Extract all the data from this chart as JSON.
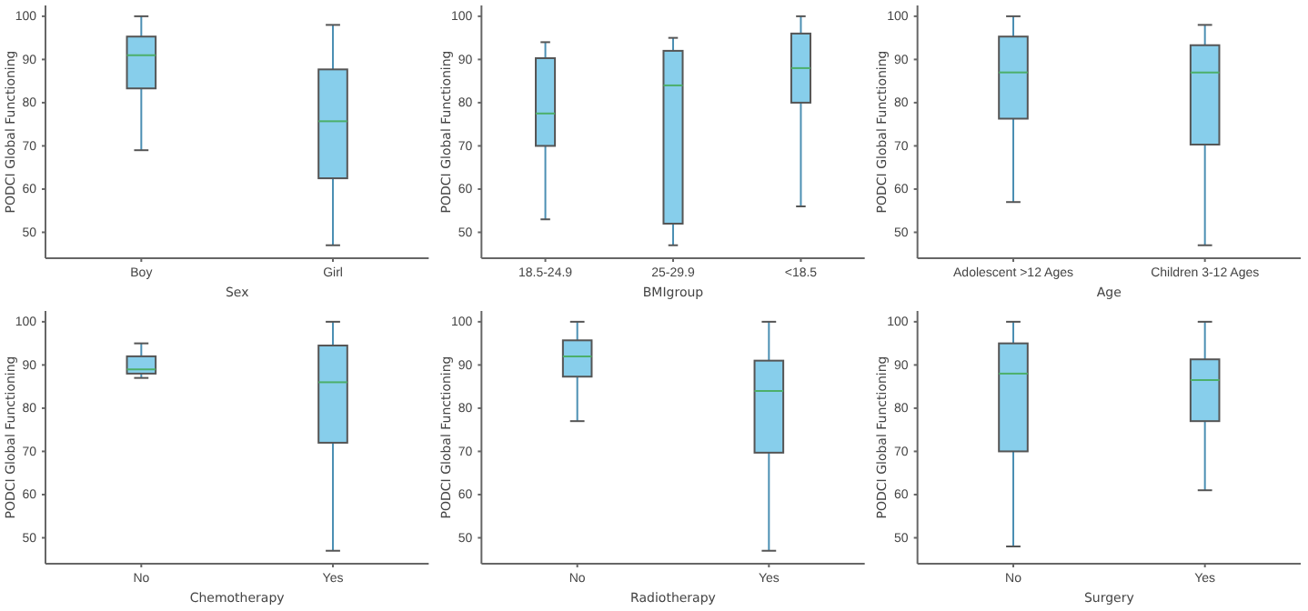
{
  "chart_data": [
    {
      "type": "box",
      "categories": [
        "Boy",
        "Girl"
      ],
      "xlabel": "Sex",
      "ylabel": "PODCI Global Functioning",
      "ylim": [
        44,
        102.5
      ],
      "yticks": [
        50,
        60,
        70,
        80,
        90,
        100
      ],
      "grid": false,
      "series": [
        {
          "color": "#87ceeb",
          "boxes": [
            {
              "low": 69,
              "q1": 83.3,
              "median": 91,
              "q3": 95.3,
              "high": 100
            },
            {
              "low": 47,
              "q1": 62.5,
              "median": 75.7,
              "q3": 87.7,
              "high": 98
            }
          ]
        }
      ]
    },
    {
      "type": "box",
      "categories": [
        "18.5-24.9",
        "25-29.9",
        "<18.5"
      ],
      "xlabel": "BMIgroup",
      "ylabel": "PODCI Global Functioning",
      "ylim": [
        44,
        102.5
      ],
      "yticks": [
        50,
        60,
        70,
        80,
        90,
        100
      ],
      "grid": false,
      "series": [
        {
          "color": "#87ceeb",
          "boxes": [
            {
              "low": 53,
              "q1": 70,
              "median": 77.5,
              "q3": 90.3,
              "high": 94
            },
            {
              "low": 47,
              "q1": 52,
              "median": 84,
              "q3": 92,
              "high": 95
            },
            {
              "low": 56,
              "q1": 80,
              "median": 88,
              "q3": 96,
              "high": 100
            }
          ]
        }
      ]
    },
    {
      "type": "box",
      "categories": [
        "Adolescent >12 Ages",
        "Children 3-12 Ages"
      ],
      "xlabel": "Age",
      "ylabel": "PODCI Global Functioning",
      "ylim": [
        44,
        102.5
      ],
      "yticks": [
        50,
        60,
        70,
        80,
        90,
        100
      ],
      "grid": false,
      "series": [
        {
          "color": "#87ceeb",
          "boxes": [
            {
              "low": 57,
              "q1": 76.3,
              "median": 87,
              "q3": 95.3,
              "high": 100
            },
            {
              "low": 47,
              "q1": 70.3,
              "median": 87,
              "q3": 93.3,
              "high": 98
            }
          ]
        }
      ]
    },
    {
      "type": "box",
      "categories": [
        "No",
        "Yes"
      ],
      "xlabel": "Chemotherapy",
      "ylabel": "PODCI Global Functioning",
      "ylim": [
        44,
        102.5
      ],
      "yticks": [
        50,
        60,
        70,
        80,
        90,
        100
      ],
      "grid": false,
      "series": [
        {
          "color": "#87ceeb",
          "boxes": [
            {
              "low": 87,
              "q1": 88,
              "median": 89,
              "q3": 92,
              "high": 95
            },
            {
              "low": 47,
              "q1": 72,
              "median": 86,
              "q3": 94.5,
              "high": 100
            }
          ]
        }
      ]
    },
    {
      "type": "box",
      "categories": [
        "No",
        "Yes"
      ],
      "xlabel": "Radiotherapy",
      "ylabel": "PODCI Global Functioning",
      "ylim": [
        44,
        102.5
      ],
      "yticks": [
        50,
        60,
        70,
        80,
        90,
        100
      ],
      "grid": false,
      "series": [
        {
          "color": "#87ceeb",
          "boxes": [
            {
              "low": 77,
              "q1": 87.3,
              "median": 92,
              "q3": 95.7,
              "high": 100
            },
            {
              "low": 47,
              "q1": 69.7,
              "median": 84,
              "q3": 91,
              "high": 100
            }
          ]
        }
      ]
    },
    {
      "type": "box",
      "categories": [
        "No",
        "Yes"
      ],
      "xlabel": "Surgery",
      "ylabel": "PODCI Global Functioning",
      "ylim": [
        44,
        102.5
      ],
      "yticks": [
        50,
        60,
        70,
        80,
        90,
        100
      ],
      "grid": false,
      "series": [
        {
          "color": "#87ceeb",
          "boxes": [
            {
              "low": 48,
              "q1": 70,
              "median": 88,
              "q3": 95,
              "high": 100
            },
            {
              "low": 61,
              "q1": 77,
              "median": 86.5,
              "q3": 91.3,
              "high": 100
            }
          ]
        }
      ]
    }
  ]
}
